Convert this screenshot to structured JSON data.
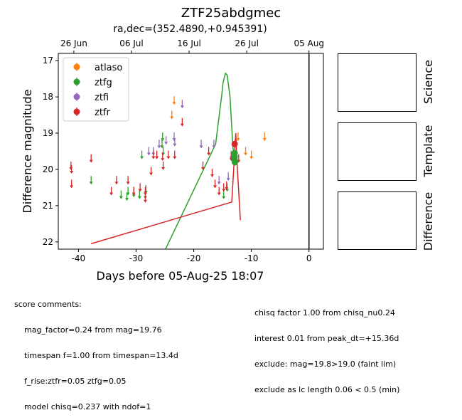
{
  "page": {
    "title": "ZTF25abdgmec",
    "subtitle": "ra,dec=(352.4890,+0.945391)"
  },
  "chart_data": {
    "type": "scatter",
    "xlabel": "Days before 05-Aug-25 18:07",
    "ylabel": "Difference magnitude",
    "xlim": [
      -43.5,
      2.5
    ],
    "ylim": [
      22.2,
      16.8
    ],
    "y_inverted": true,
    "xticks": [
      -40,
      -30,
      -20,
      -10,
      0
    ],
    "yticks": [
      17,
      18,
      19,
      20,
      21,
      22
    ],
    "top_axis": {
      "ticks": [
        {
          "x": -40.8,
          "label": "26 Jun"
        },
        {
          "x": -30.8,
          "label": "06 Jul"
        },
        {
          "x": -20.8,
          "label": "16 Jul"
        },
        {
          "x": -10.8,
          "label": "26 Jul"
        },
        {
          "x": -0.0,
          "label": "05 Aug"
        }
      ]
    },
    "legend_position": "top-left",
    "vline_x": 0,
    "series": [
      {
        "name": "atlaso",
        "color": "#ff7f0e",
        "detections": [],
        "upper_limits": [
          {
            "x": -23.4,
            "y": 18.1
          },
          {
            "x": -23.8,
            "y": 18.5
          },
          {
            "x": -12.3,
            "y": 19.1
          },
          {
            "x": -11.0,
            "y": 19.5
          },
          {
            "x": -10.0,
            "y": 19.6
          },
          {
            "x": -7.7,
            "y": 19.1
          }
        ]
      },
      {
        "name": "ztfg",
        "color": "#2ca02c",
        "detections": [
          {
            "x": -12.9,
            "y": 19.55
          },
          {
            "x": -12.9,
            "y": 19.65
          },
          {
            "x": -12.9,
            "y": 19.75
          },
          {
            "x": -12.85,
            "y": 19.8
          }
        ],
        "upper_limits": [
          {
            "x": -37.8,
            "y": 20.3
          },
          {
            "x": -32.6,
            "y": 20.7
          },
          {
            "x": -31.6,
            "y": 20.75
          },
          {
            "x": -31.4,
            "y": 20.6
          },
          {
            "x": -30.4,
            "y": 20.65
          },
          {
            "x": -29.4,
            "y": 20.7
          },
          {
            "x": -28.4,
            "y": 20.7
          },
          {
            "x": -28.3,
            "y": 20.55
          },
          {
            "x": -29.0,
            "y": 19.6
          },
          {
            "x": -25.4,
            "y": 19.1
          },
          {
            "x": -25.5,
            "y": 19.3
          },
          {
            "x": -25.3,
            "y": 19.5
          },
          {
            "x": -14.8,
            "y": 20.7
          },
          {
            "x": -14.2,
            "y": 20.5
          }
        ],
        "model_line": [
          {
            "x": -25.5,
            "y": 22.4
          },
          {
            "x": -16.2,
            "y": 19.3
          },
          {
            "x": -15.1,
            "y": 17.9
          },
          {
            "x": -14.9,
            "y": 17.6
          },
          {
            "x": -14.5,
            "y": 17.35
          },
          {
            "x": -14.2,
            "y": 17.4
          },
          {
            "x": -13.7,
            "y": 18.0
          },
          {
            "x": -13.2,
            "y": 19.4
          },
          {
            "x": -13.1,
            "y": 19.5
          }
        ]
      },
      {
        "name": "ztfi",
        "color": "#9467bd",
        "detections": [],
        "upper_limits": [
          {
            "x": -27.8,
            "y": 19.5
          },
          {
            "x": -27.0,
            "y": 19.5
          },
          {
            "x": -26.0,
            "y": 19.3
          },
          {
            "x": -24.8,
            "y": 19.2
          },
          {
            "x": -23.4,
            "y": 19.1
          },
          {
            "x": -23.3,
            "y": 19.25
          },
          {
            "x": -22.0,
            "y": 18.2
          },
          {
            "x": -18.7,
            "y": 19.3
          },
          {
            "x": -16.5,
            "y": 19.3
          },
          {
            "x": -15.6,
            "y": 20.3
          },
          {
            "x": -13.5,
            "y": 19.6
          },
          {
            "x": -14.0,
            "y": 20.2
          }
        ]
      },
      {
        "name": "ztfr",
        "color": "#d62728",
        "detections": [
          {
            "x": -12.9,
            "y": 19.3
          }
        ],
        "upper_limits": [
          {
            "x": -41.3,
            "y": 19.9
          },
          {
            "x": -41.2,
            "y": 20.0
          },
          {
            "x": -41.2,
            "y": 20.4
          },
          {
            "x": -37.8,
            "y": 19.7
          },
          {
            "x": -34.3,
            "y": 20.6
          },
          {
            "x": -33.4,
            "y": 20.3
          },
          {
            "x": -31.4,
            "y": 20.3
          },
          {
            "x": -30.4,
            "y": 20.6
          },
          {
            "x": -29.3,
            "y": 20.5
          },
          {
            "x": -28.4,
            "y": 20.8
          },
          {
            "x": -28.4,
            "y": 20.6
          },
          {
            "x": -27.4,
            "y": 20.05
          },
          {
            "x": -27.0,
            "y": 19.6
          },
          {
            "x": -26.4,
            "y": 19.6
          },
          {
            "x": -25.4,
            "y": 19.65
          },
          {
            "x": -25.3,
            "y": 19.9
          },
          {
            "x": -24.4,
            "y": 19.6
          },
          {
            "x": -23.3,
            "y": 19.6
          },
          {
            "x": -22.0,
            "y": 18.7
          },
          {
            "x": -18.4,
            "y": 19.9
          },
          {
            "x": -17.4,
            "y": 19.5
          },
          {
            "x": -16.8,
            "y": 20.1
          },
          {
            "x": -16.3,
            "y": 20.4
          },
          {
            "x": -15.6,
            "y": 20.6
          },
          {
            "x": -14.8,
            "y": 20.5
          },
          {
            "x": -14.3,
            "y": 20.45
          },
          {
            "x": -13.5,
            "y": 19.65
          },
          {
            "x": -12.2,
            "y": 19.7
          }
        ],
        "model_line": [
          {
            "x": -37.8,
            "y": 22.05
          },
          {
            "x": -13.4,
            "y": 20.9
          },
          {
            "x": -12.7,
            "y": 19.0
          },
          {
            "x": -12.5,
            "y": 19.8
          },
          {
            "x": -11.9,
            "y": 21.4
          }
        ]
      }
    ]
  },
  "panels": [
    {
      "label": "Science"
    },
    {
      "label": "Template"
    },
    {
      "label": "Difference"
    }
  ],
  "comments": {
    "left_lines": [
      "score comments:",
      "    mag_factor=0.24 from mag=19.76",
      "    timespan f=1.00 from timespan=13.4d",
      "    f_rise:ztfr=0.05 ztfg=0.05",
      "    model chisq=0.237 with ndof=1"
    ],
    "right_lines": [
      "chisq factor 1.00 from chisq_nu0.24",
      "interest 0.01 from peak_dt=+15.36d",
      "exclude: mag=19.8>19.0 (faint lim)",
      "exclude as lc length 0.06 < 0.5 (min)"
    ]
  }
}
